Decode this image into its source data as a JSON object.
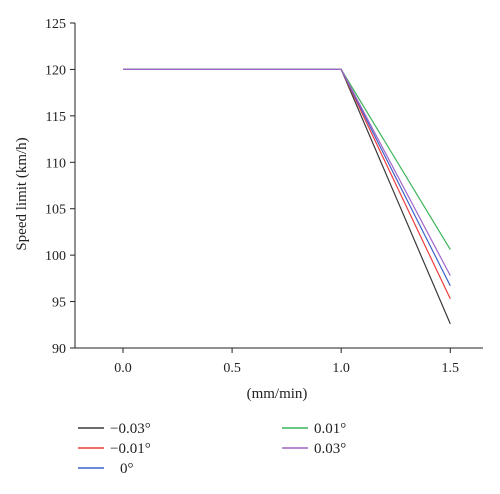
{
  "chart_data": {
    "type": "line",
    "title": "",
    "xlabel": "(mm/min)",
    "ylabel": "Speed limit (km/h)",
    "xlim": [
      -0.22,
      1.65
    ],
    "ylim": [
      90,
      125
    ],
    "x_ticks": [
      "0.0",
      "0.5",
      "1.0",
      "1.5"
    ],
    "y_ticks": [
      "90",
      "95",
      "100",
      "105",
      "110",
      "115",
      "120",
      "125"
    ],
    "grid": false,
    "legend_placement": "bottom",
    "series": [
      {
        "name": "−0.03°",
        "color": "#3a3a3a",
        "x": [
          0.0,
          1.0,
          1.5
        ],
        "y": [
          120,
          120,
          92.6
        ]
      },
      {
        "name": "−0.01°",
        "color": "#f03c3c",
        "x": [
          0.0,
          1.0,
          1.5
        ],
        "y": [
          120,
          120,
          95.3
        ]
      },
      {
        "name": "0°",
        "color": "#3c64c8",
        "x": [
          0.0,
          1.0,
          1.5
        ],
        "y": [
          120,
          120,
          96.7
        ]
      },
      {
        "name": "0.01°",
        "color": "#3cb45a",
        "x": [
          0.0,
          1.0,
          1.5
        ],
        "y": [
          120,
          120,
          100.6
        ]
      },
      {
        "name": "0.03°",
        "color": "#a064c8",
        "x": [
          0.0,
          1.0,
          1.5
        ],
        "y": [
          120,
          120,
          97.8
        ]
      }
    ]
  }
}
